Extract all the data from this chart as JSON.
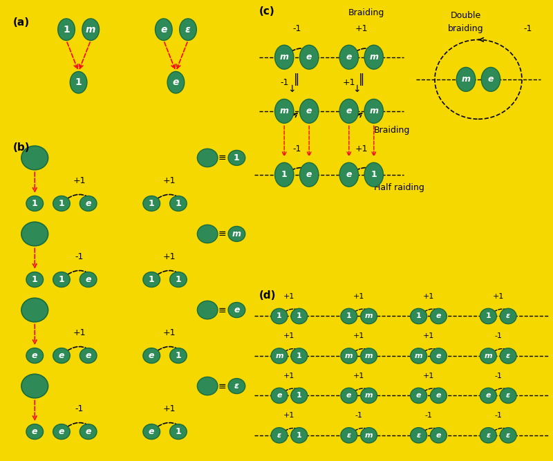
{
  "bg_color": "#F5D800",
  "circle_color": "#2E8B57",
  "circle_edge": "#1a6b3c",
  "text_color": "white",
  "arrow_color": "red",
  "line_color": "black",
  "panel_bg": "#F5D800",
  "white_gap": "white",
  "labels": {
    "a": "(a)",
    "b": "(b)",
    "c": "(c)",
    "d": "(d)"
  }
}
